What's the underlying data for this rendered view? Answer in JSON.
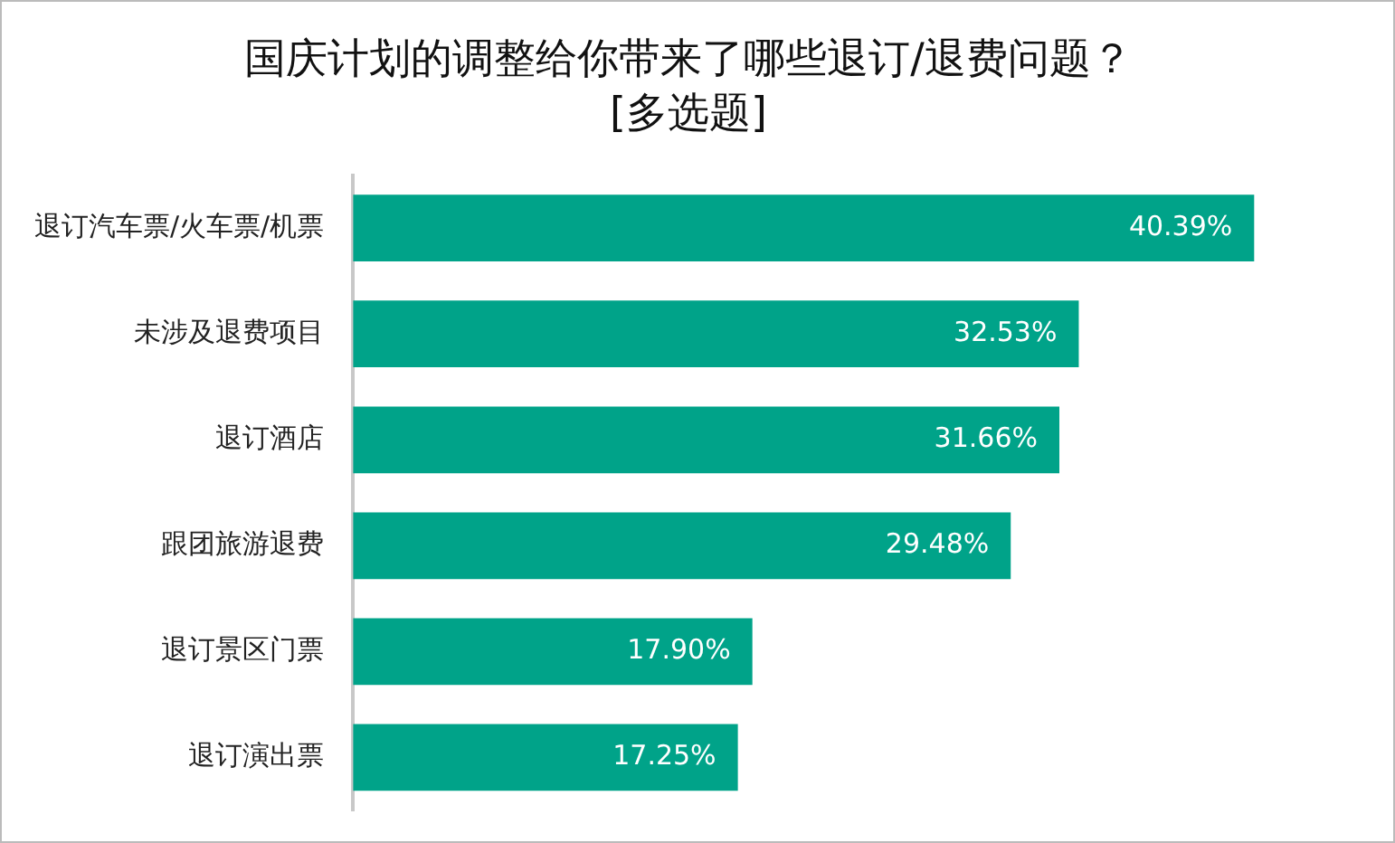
{
  "chart_data": {
    "type": "bar",
    "orientation": "horizontal",
    "title": "国庆计划的调整给你带来了哪些退订/退费问题？\n[多选题]",
    "categories": [
      "退订汽车票/火车票/机票",
      "未涉及退费项目",
      "退订酒店",
      "跟团旅游退费",
      "退订景区门票",
      "退订演出票"
    ],
    "values": [
      40.39,
      32.53,
      31.66,
      29.48,
      17.9,
      17.25
    ],
    "value_labels": [
      "40.39%",
      "32.53%",
      "31.66%",
      "29.48%",
      "17.90%",
      "17.25%"
    ],
    "color": "#00a389"
  }
}
